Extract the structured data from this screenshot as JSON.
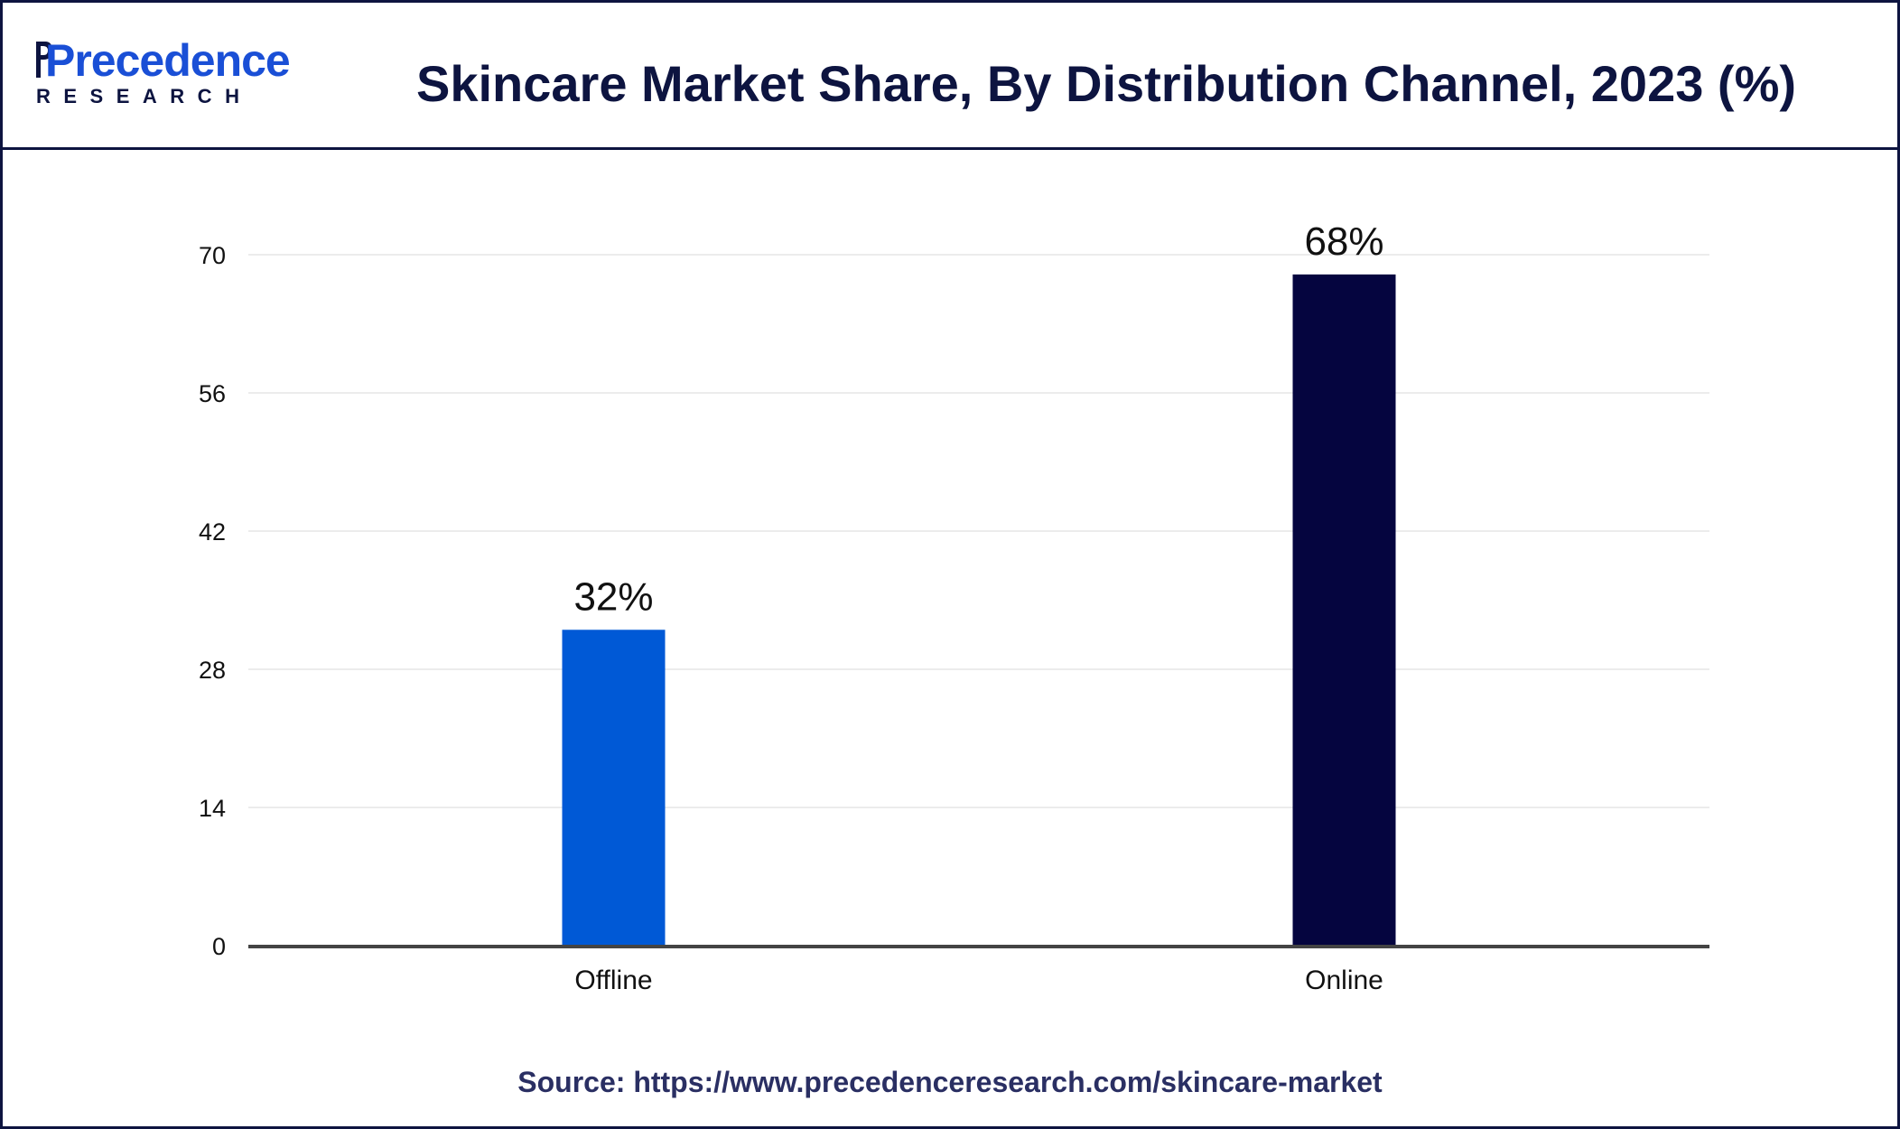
{
  "brand": {
    "name": "Precedence",
    "sub": "RESEARCH",
    "primary_color": "#1a4fd6",
    "dark_color": "#0d1440"
  },
  "header": {
    "title": "Skincare Market Share, By Distribution Channel, 2023 (%)"
  },
  "footer": {
    "source": "Source: https://www.precedenceresearch.com/skincare-market"
  },
  "chart_data": {
    "type": "bar",
    "title": "Skincare Market Share, By Distribution Channel, 2023 (%)",
    "xlabel": "",
    "ylabel": "",
    "categories": [
      "Offline",
      "Online"
    ],
    "values": [
      32,
      68
    ],
    "value_labels": [
      "32%",
      "68%"
    ],
    "bar_colors": [
      "#0059d6",
      "#05053f"
    ],
    "ylim": [
      0,
      70
    ],
    "yticks": [
      0,
      14,
      28,
      42,
      56,
      70
    ],
    "grid": true,
    "legend": "none"
  }
}
